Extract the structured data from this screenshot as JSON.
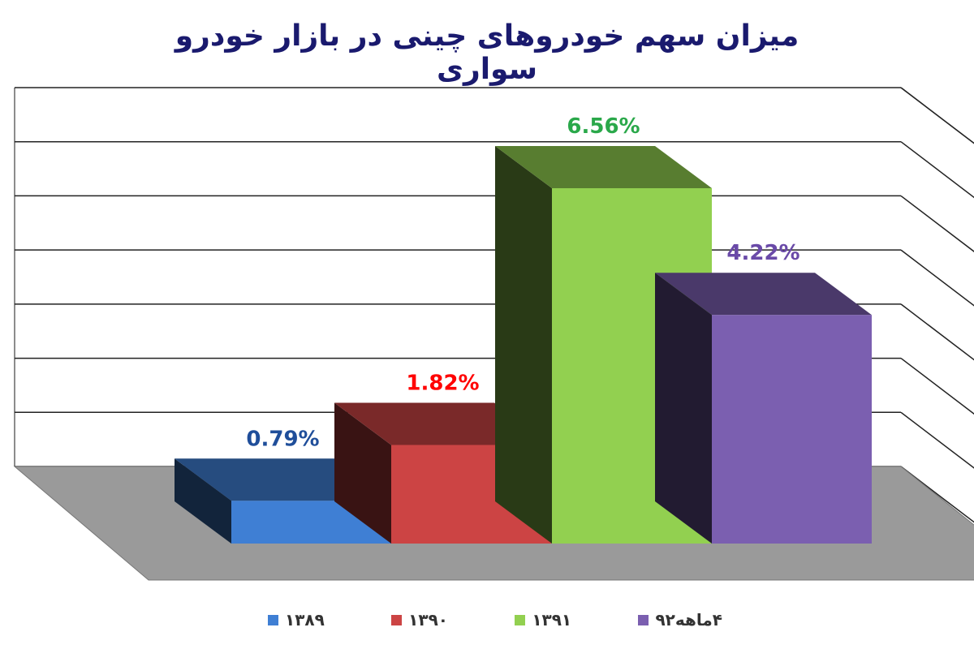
{
  "chart_data": {
    "type": "bar",
    "title": "میزان سهم خودروهای چینی در بازار خودرو سواری",
    "categories": [
      "۱۳۸۹",
      "۱۳۹۰",
      "۱۳۹۱",
      "۴ماهه۹۲"
    ],
    "values": [
      0.79,
      1.82,
      6.56,
      4.22
    ],
    "data_labels": [
      "0.79%",
      "1.82%",
      "6.56%",
      "4.22%"
    ],
    "colors": [
      "#3f7fd4",
      "#cc4444",
      "#92d050",
      "#7b5fb0"
    ],
    "label_colors": [
      "#1f4e9a",
      "#ff0000",
      "#2aa84a",
      "#6a4aa8"
    ],
    "ylim": [
      0,
      7
    ],
    "grid": true,
    "style": "3d-column",
    "legend_position": "bottom"
  }
}
